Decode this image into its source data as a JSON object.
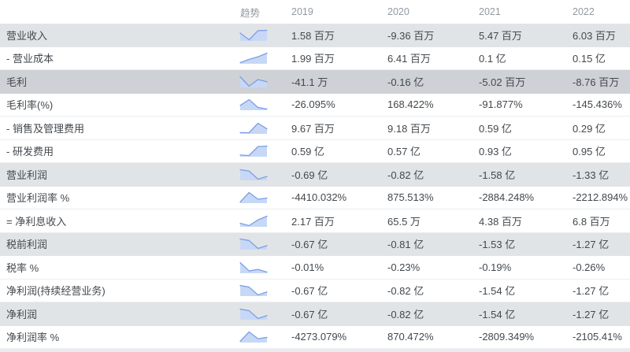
{
  "header": {
    "trend_label": "趋势",
    "years": [
      "2019",
      "2020",
      "2021",
      "2022"
    ]
  },
  "colors": {
    "spark_line": "#7b9fe6",
    "spark_fill": "#c7d8f6",
    "row_emphasis_bg": "#e1e4e7",
    "row_strong_bg": "#ced1d5",
    "header_text": "#939aa1",
    "body_text": "#43484d"
  },
  "rows": [
    {
      "label": "营业收入",
      "emphasis": "strong",
      "values": [
        "1.58 百万",
        "-9.36 百万",
        "5.47 百万",
        "6.03 百万"
      ],
      "trend": [
        1.58,
        -9.36,
        5.47,
        6.03
      ]
    },
    {
      "label": "- 营业成本",
      "emphasis": "",
      "values": [
        "1.99 百万",
        "6.41 百万",
        "0.1 亿",
        "0.15 亿"
      ],
      "trend": [
        1.99,
        6.41,
        10,
        15
      ]
    },
    {
      "label": "毛利",
      "emphasis": "strongest",
      "values": [
        "-41.1 万",
        "-0.16 亿",
        "-5.02 百万",
        "-8.76 百万"
      ],
      "trend": [
        -0.411,
        -16,
        -5.02,
        -8.76
      ]
    },
    {
      "label": "毛利率(%)",
      "emphasis": "",
      "values": [
        "-26.095%",
        "168.422%",
        "-91.877%",
        "-145.436%"
      ],
      "trend": [
        -26.095,
        168.422,
        -91.877,
        -145.436
      ]
    },
    {
      "label": "- 销售及管理费用",
      "emphasis": "",
      "values": [
        "9.67 百万",
        "9.18 百万",
        "0.59 亿",
        "0.29 亿"
      ],
      "trend": [
        9.67,
        9.18,
        59,
        29
      ]
    },
    {
      "label": "- 研发费用",
      "emphasis": "",
      "values": [
        "0.59 亿",
        "0.57 亿",
        "0.93 亿",
        "0.95 亿"
      ],
      "trend": [
        0.59,
        0.57,
        0.93,
        0.95
      ]
    },
    {
      "label": "营业利润",
      "emphasis": "strong",
      "values": [
        "-0.69 亿",
        "-0.82 亿",
        "-1.58 亿",
        "-1.33 亿"
      ],
      "trend": [
        -0.69,
        -0.82,
        -1.58,
        -1.33
      ]
    },
    {
      "label": "营业利润率 %",
      "emphasis": "",
      "values": [
        "-4410.032%",
        "875.513%",
        "-2884.248%",
        "-2212.894%"
      ],
      "trend": [
        -4410.032,
        875.513,
        -2884.248,
        -2212.894
      ]
    },
    {
      "label": "= 净利息收入",
      "emphasis": "",
      "values": [
        "2.17 百万",
        "65.5 万",
        "4.38 百万",
        "6.8 百万"
      ],
      "trend": [
        2.17,
        0.655,
        4.38,
        6.8
      ]
    },
    {
      "label": "税前利润",
      "emphasis": "strong",
      "values": [
        "-0.67 亿",
        "-0.81 亿",
        "-1.53 亿",
        "-1.27 亿"
      ],
      "trend": [
        -0.67,
        -0.81,
        -1.53,
        -1.27
      ]
    },
    {
      "label": "税率 %",
      "emphasis": "",
      "values": [
        "-0.01%",
        "-0.23%",
        "-0.19%",
        "-0.26%"
      ],
      "trend": [
        -0.01,
        -0.23,
        -0.19,
        -0.26
      ]
    },
    {
      "label": "净利润(持续经营业务)",
      "emphasis": "",
      "values": [
        "-0.67 亿",
        "-0.82 亿",
        "-1.54 亿",
        "-1.27 亿"
      ],
      "trend": [
        -0.67,
        -0.82,
        -1.54,
        -1.27
      ]
    },
    {
      "label": "净利润",
      "emphasis": "strong",
      "values": [
        "-0.67 亿",
        "-0.82 亿",
        "-1.54 亿",
        "-1.27 亿"
      ],
      "trend": [
        -0.67,
        -0.82,
        -1.54,
        -1.27
      ]
    },
    {
      "label": "净利润率 %",
      "emphasis": "",
      "values": [
        "-4273.079%",
        "870.472%",
        "-2809.349%",
        "-2105.41%"
      ],
      "trend": [
        -4273.079,
        870.472,
        -2809.349,
        -2105.41
      ]
    }
  ]
}
